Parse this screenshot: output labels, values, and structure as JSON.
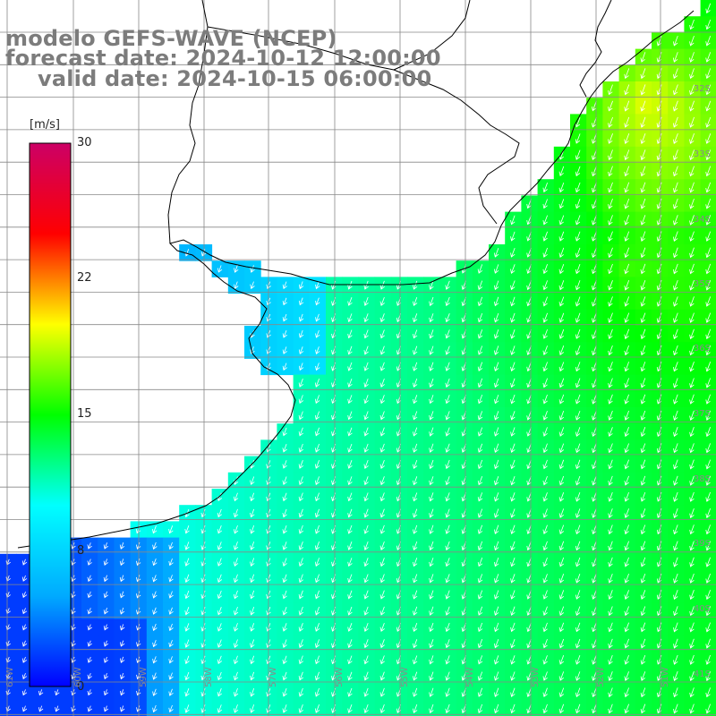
{
  "title": {
    "model": "modelo GEFS-WAVE (NCEP)",
    "forecast": "forecast date: 2024-10-12 12:00:00",
    "valid": "valid date: 2024-10-15 06:00:00"
  },
  "colorbar": {
    "unit": "[m/s]",
    "min": 0,
    "max": 30,
    "ticks": [
      "30",
      "22",
      "15",
      "8",
      "0"
    ],
    "tick_values": [
      30,
      22,
      15,
      8,
      0
    ],
    "stops": [
      "#0000ff",
      "#00aaff",
      "#00ffff",
      "#00ff00",
      "#ffff00",
      "#ff0000",
      "#cc0066"
    ]
  },
  "latitude_labels": [
    "32S",
    "33S",
    "34S",
    "35S",
    "36S",
    "37S",
    "38S",
    "39S",
    "40S",
    "41S"
  ],
  "latitude_values": [
    -32,
    -33,
    -34,
    -35,
    -36,
    -37,
    -38,
    -39,
    -40,
    -41
  ],
  "longitude_labels": [
    "61W",
    "60W",
    "59W",
    "58W",
    "57W",
    "56W",
    "55W",
    "54W",
    "53W",
    "52W",
    "51W"
  ],
  "longitude_values": [
    -61,
    -60,
    -59,
    -58,
    -57,
    -56,
    -55,
    -54,
    -53,
    -52,
    -51
  ],
  "field": {
    "variable": "wind speed",
    "units": "m/s",
    "typical_range": [
      4,
      16
    ],
    "predominant_direction": "from north-east (arrows pointing south-southwest)"
  },
  "colors": {
    "land": "#ffffff",
    "coast": "#000000",
    "grid": "#888888",
    "title_text": "#7c7c7c",
    "arrows": "#ffffff"
  }
}
